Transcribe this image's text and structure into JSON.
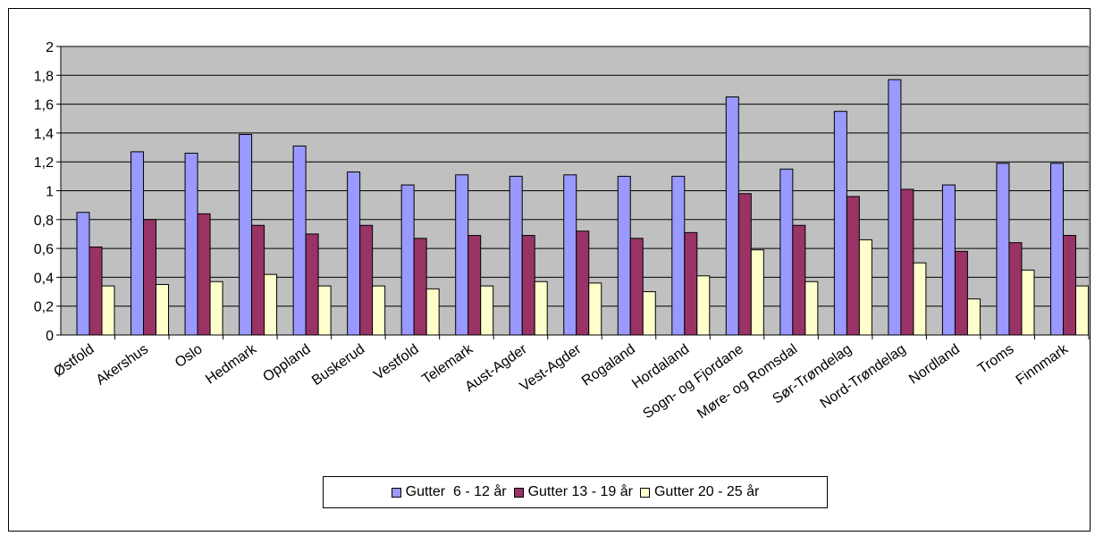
{
  "chart_data": {
    "type": "bar",
    "title": "",
    "xlabel": "",
    "ylabel": "",
    "ylim": [
      0,
      2
    ],
    "yticks": [
      "0",
      "0,2",
      "0,4",
      "0,6",
      "0,8",
      "1",
      "1,2",
      "1,4",
      "1,6",
      "1,8",
      "2"
    ],
    "grid": true,
    "plot_background": "#c0c0c0",
    "legend_position": "bottom",
    "categories": [
      "Østfold",
      "Akershus",
      "Oslo",
      "Hedmark",
      "Oppland",
      "Buskerud",
      "Vestfold",
      "Telemark",
      "Aust-Agder",
      "Vest-Agder",
      "Rogaland",
      "Hordaland",
      "Sogn- og Fjordane",
      "Møre- og Romsdal",
      "Sør-Trøndelag",
      "Nord-Trøndelag",
      "Nordland",
      "Troms",
      "Finnmark"
    ],
    "series": [
      {
        "name": "Gutter  6 - 12 år",
        "color": "#9999ff",
        "values": [
          0.85,
          1.27,
          1.26,
          1.39,
          1.31,
          1.13,
          1.04,
          1.11,
          1.1,
          1.11,
          1.1,
          1.1,
          1.65,
          1.15,
          1.55,
          1.77,
          1.04,
          1.19,
          1.19
        ]
      },
      {
        "name": "Gutter 13 - 19 år",
        "color": "#993366",
        "values": [
          0.61,
          0.8,
          0.84,
          0.76,
          0.7,
          0.76,
          0.67,
          0.69,
          0.69,
          0.72,
          0.67,
          0.71,
          0.98,
          0.76,
          0.96,
          1.01,
          0.58,
          0.64,
          0.69
        ]
      },
      {
        "name": "Gutter 20 - 25 år",
        "color": "#ffffcc",
        "values": [
          0.34,
          0.35,
          0.37,
          0.42,
          0.34,
          0.34,
          0.32,
          0.34,
          0.37,
          0.36,
          0.3,
          0.41,
          0.59,
          0.37,
          0.66,
          0.5,
          0.25,
          0.45,
          0.34
        ]
      }
    ]
  }
}
